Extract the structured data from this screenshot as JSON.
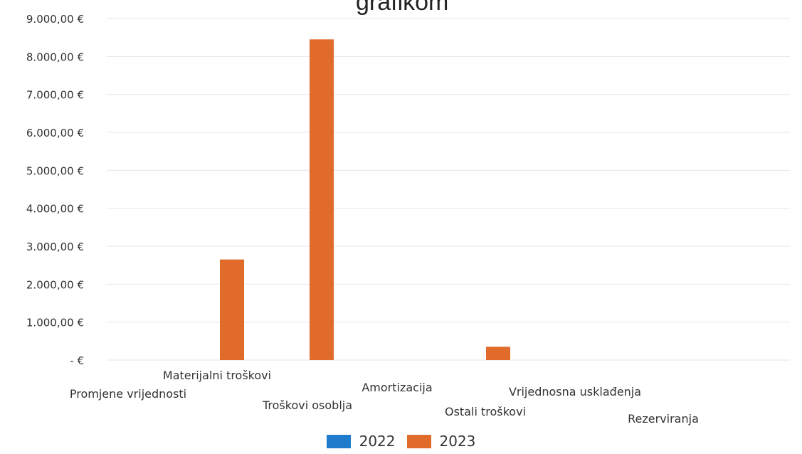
{
  "header": {
    "title_fragment": "grafikom"
  },
  "colors": {
    "s2022": "#1f7ccd",
    "s2023": "#e06b2a",
    "grid": "#e6e6e6",
    "text": "#333333"
  },
  "chart_data": {
    "type": "bar",
    "categories": [
      "Promjene vrijednosti",
      "Materijalni troškovi",
      "Troškovi osoblja",
      "Amortizacija",
      "Ostali troškovi",
      "Vrijednosna usklađenja",
      "Rezerviranja"
    ],
    "series": [
      {
        "name": "2022",
        "values": [
          0,
          0,
          0,
          0,
          0,
          0,
          0
        ]
      },
      {
        "name": "2023",
        "values": [
          0,
          2650,
          8450,
          0,
          350,
          0,
          0
        ]
      }
    ],
    "y_ticks": [
      "9.000,00 €",
      "8.000,00 €",
      "7.000,00 €",
      "6.000,00 €",
      "5.000,00 €",
      "4.000,00 €",
      "3.000,00 €",
      "2.000,00 €",
      "1.000,00 €",
      "- €"
    ],
    "ylim": [
      0,
      9000
    ],
    "grid": true,
    "legend": "bottom"
  }
}
